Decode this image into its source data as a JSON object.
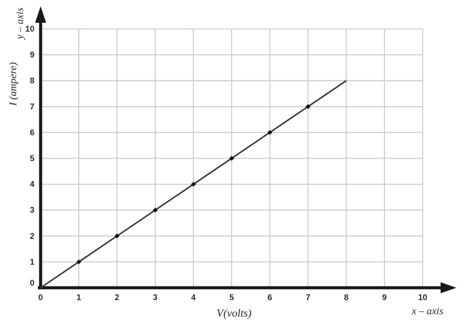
{
  "labels": {
    "y_axis_name": "y – axis",
    "y_unit_label": "I (ampere)",
    "x_axis_name": "x – axis",
    "x_unit_label": "V(volts)"
  },
  "chart_data": {
    "type": "line",
    "title": "",
    "xlabel": "V(volts)",
    "ylabel": "I (ampere)",
    "xlim": [
      0,
      10
    ],
    "ylim": [
      0,
      10
    ],
    "grid": true,
    "x_ticks": [
      0,
      1,
      2,
      3,
      4,
      5,
      6,
      7,
      8,
      9,
      10
    ],
    "y_ticks": [
      0,
      1,
      2,
      3,
      4,
      5,
      6,
      7,
      8,
      9,
      10
    ],
    "line": {
      "x": [
        0,
        8
      ],
      "y": [
        0,
        8
      ]
    },
    "points": {
      "x": [
        1,
        2,
        3,
        4,
        5,
        6,
        7
      ],
      "y": [
        1,
        2,
        3,
        4,
        5,
        6,
        7
      ]
    },
    "colors": {
      "grid": "#c6c6c6",
      "axis": "#1a1a1a",
      "line": "#3a3a3a",
      "marker": "#0d0d0d",
      "tick_text": "#2b2b2b"
    }
  }
}
